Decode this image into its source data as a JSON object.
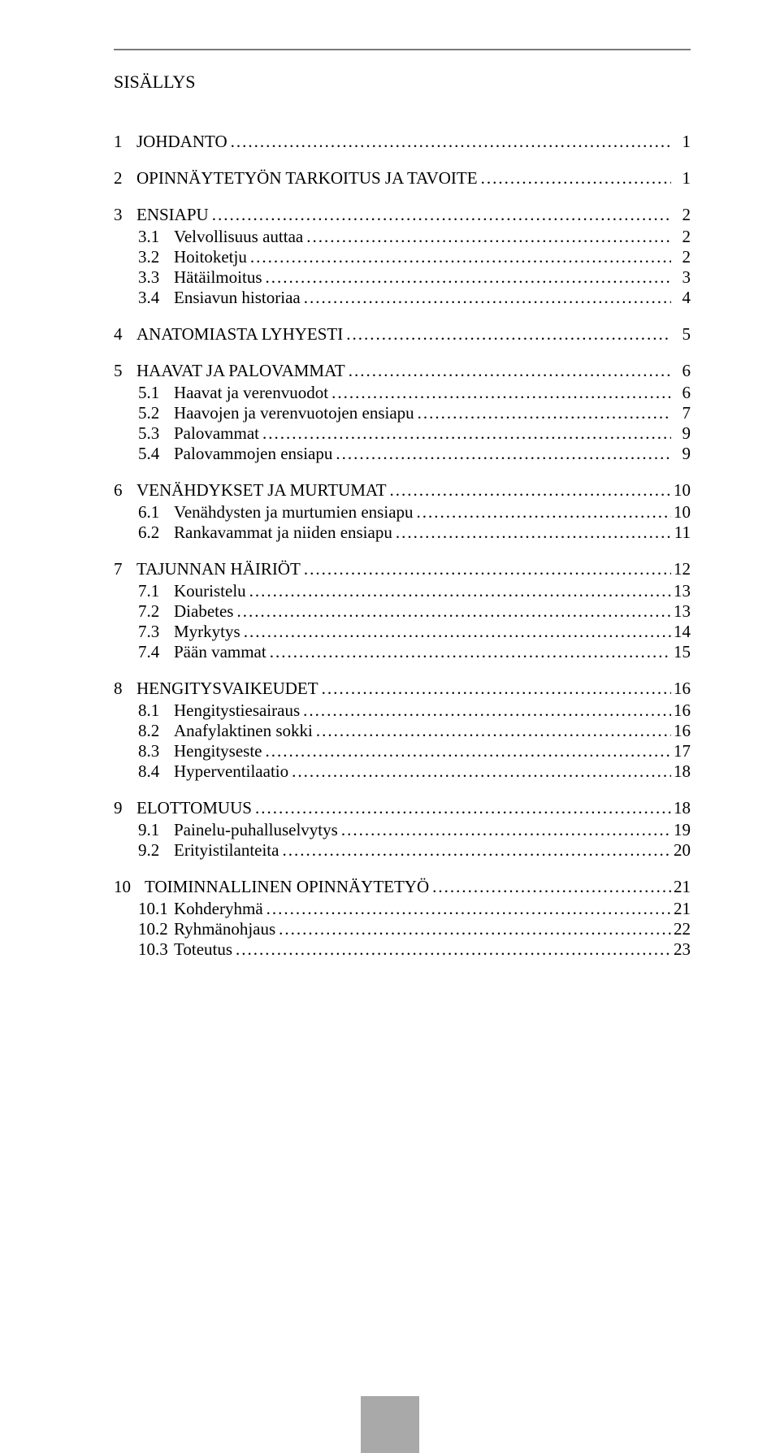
{
  "title": "SISÄLLYS",
  "toc": [
    {
      "type": "section",
      "num": "1",
      "label": "JOHDANTO",
      "page": "1"
    },
    {
      "type": "section",
      "num": "2",
      "label": "OPINNÄYTETYÖN TARKOITUS JA TAVOITE",
      "page": "1"
    },
    {
      "type": "section",
      "num": "3",
      "label": "ENSIAPU",
      "page": "2"
    },
    {
      "type": "sub",
      "num": "3.1",
      "label": "Velvollisuus auttaa",
      "page": "2"
    },
    {
      "type": "sub",
      "num": "3.2",
      "label": "Hoitoketju",
      "page": "2"
    },
    {
      "type": "sub",
      "num": "3.3",
      "label": "Hätäilmoitus",
      "page": "3"
    },
    {
      "type": "sub",
      "num": "3.4",
      "label": "Ensiavun historiaa",
      "page": "4"
    },
    {
      "type": "section",
      "num": "4",
      "label": "ANATOMIASTA LYHYESTI",
      "page": "5"
    },
    {
      "type": "section",
      "num": "5",
      "label": "HAAVAT JA PALOVAMMAT",
      "page": "6"
    },
    {
      "type": "sub",
      "num": "5.1",
      "label": "Haavat ja verenvuodot",
      "page": "6"
    },
    {
      "type": "sub",
      "num": "5.2",
      "label": "Haavojen ja verenvuotojen ensiapu",
      "page": "7"
    },
    {
      "type": "sub",
      "num": "5.3",
      "label": "Palovammat",
      "page": "9"
    },
    {
      "type": "sub",
      "num": "5.4",
      "label": "Palovammojen ensiapu",
      "page": "9"
    },
    {
      "type": "section",
      "num": "6",
      "label": "VENÄHDYKSET JA MURTUMAT",
      "page": "10"
    },
    {
      "type": "sub",
      "num": "6.1",
      "label": "Venähdysten ja murtumien ensiapu",
      "page": "10"
    },
    {
      "type": "sub",
      "num": "6.2",
      "label": "Rankavammat ja niiden ensiapu",
      "page": "11"
    },
    {
      "type": "section",
      "num": "7",
      "label": "TAJUNNAN HÄIRIÖT",
      "page": "12"
    },
    {
      "type": "sub",
      "num": "7.1",
      "label": "Kouristelu",
      "page": "13"
    },
    {
      "type": "sub",
      "num": "7.2",
      "label": "Diabetes",
      "page": "13"
    },
    {
      "type": "sub",
      "num": "7.3",
      "label": "Myrkytys",
      "page": "14"
    },
    {
      "type": "sub",
      "num": "7.4",
      "label": "Pään vammat",
      "page": "15"
    },
    {
      "type": "section",
      "num": "8",
      "label": "HENGITYSVAIKEUDET",
      "page": "16"
    },
    {
      "type": "sub",
      "num": "8.1",
      "label": "Hengitystiesairaus",
      "page": "16"
    },
    {
      "type": "sub",
      "num": "8.2",
      "label": "Anafylaktinen sokki",
      "page": "16"
    },
    {
      "type": "sub",
      "num": "8.3",
      "label": "Hengityseste",
      "page": "17"
    },
    {
      "type": "sub",
      "num": "8.4",
      "label": "Hyperventilaatio",
      "page": "18"
    },
    {
      "type": "section",
      "num": "9",
      "label": "ELOTTOMUUS",
      "page": "18"
    },
    {
      "type": "sub",
      "num": "9.1",
      "label": "Painelu-puhalluselvytys",
      "page": "19"
    },
    {
      "type": "sub",
      "num": "9.2",
      "label": "Erityistilanteita",
      "page": "20"
    },
    {
      "type": "section",
      "num": "10",
      "label": "TOIMINNALLINEN OPINNÄYTETYÖ",
      "page": "21",
      "wide": true
    },
    {
      "type": "sub",
      "num": "10.1",
      "label": "Kohderyhmä",
      "page": "21"
    },
    {
      "type": "sub",
      "num": "10.2",
      "label": "Ryhmänohjaus",
      "page": "22"
    },
    {
      "type": "sub",
      "num": "10.3",
      "label": "Toteutus",
      "page": "23"
    }
  ]
}
